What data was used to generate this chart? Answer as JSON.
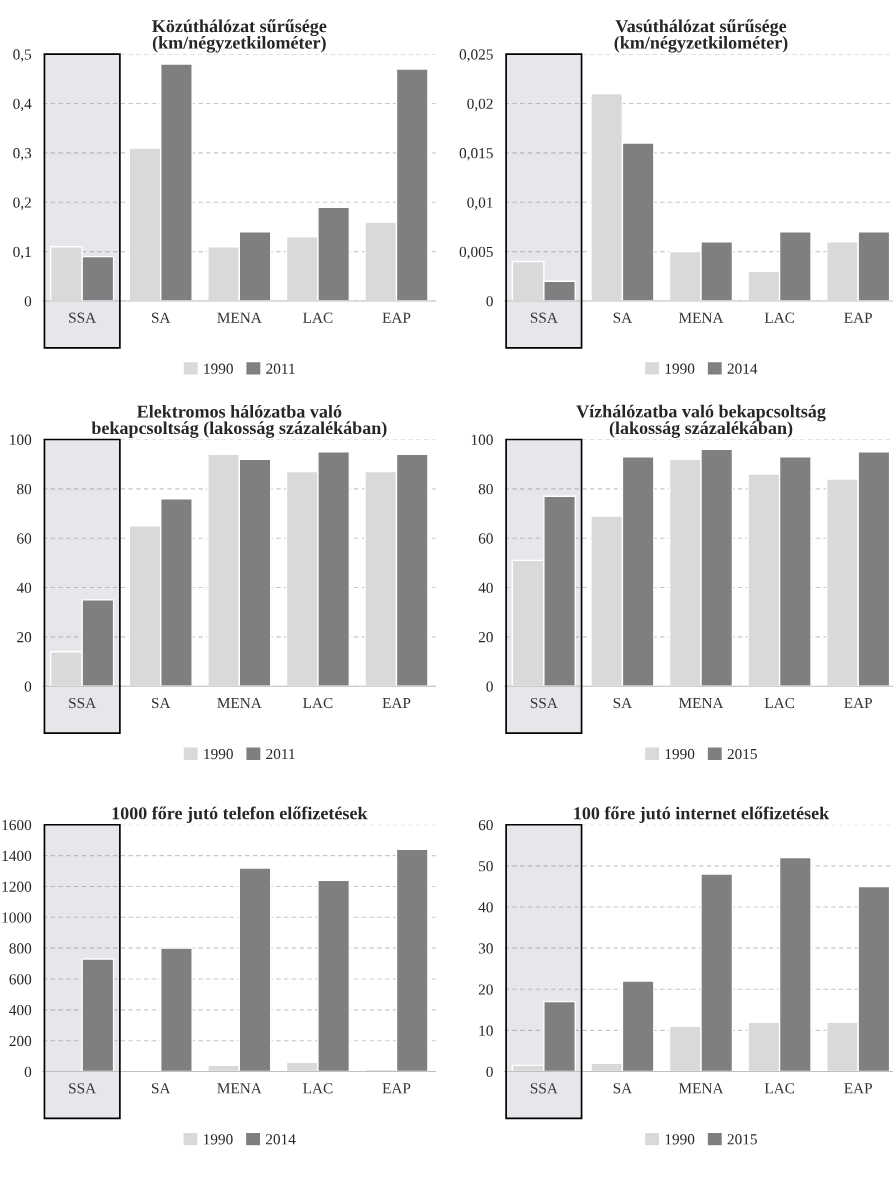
{
  "chart_data": [
    {
      "type": "bar",
      "title": "Közúthálózat sűrűsége\n(km/négyzetkilométer)",
      "categories": [
        "SSA",
        "SA",
        "MENA",
        "LAC",
        "EAP"
      ],
      "series": [
        {
          "name": "1990",
          "color": "#d9d9d9",
          "values": [
            0.11,
            0.31,
            0.11,
            0.13,
            0.16
          ]
        },
        {
          "name": "2011",
          "color": "#7f7f81",
          "values": [
            0.09,
            0.48,
            0.14,
            0.19,
            0.47
          ]
        }
      ],
      "ylim": [
        0,
        0.5
      ],
      "yticks": [
        0,
        {
          "value": 0.1,
          "label": "0,1"
        },
        {
          "value": 0.2,
          "label": "0,2"
        },
        {
          "value": 0.3,
          "label": "0,3"
        },
        {
          "value": 0.4,
          "label": "0,4"
        },
        {
          "value": 0.5,
          "label": "0,5"
        }
      ],
      "grid": "y",
      "legend": "bottom",
      "bands": [
        {
          "axis": "x",
          "from": "SSA",
          "to": "SSA",
          "color": "#5a6070"
        }
      ]
    },
    {
      "type": "bar",
      "title": "Vasúthálózat sűrűsége\n(km/négyzetkilométer)",
      "categories": [
        "SSA",
        "SA",
        "MENA",
        "LAC",
        "EAP"
      ],
      "series": [
        {
          "name": "1990",
          "color": "#d9d9d9",
          "values": [
            0.004,
            0.021,
            0.005,
            0.003,
            0.006
          ]
        },
        {
          "name": "2014",
          "color": "#7f7f81",
          "values": [
            0.002,
            0.016,
            0.006,
            0.007,
            0.007
          ]
        }
      ],
      "ylim": [
        0,
        0.025
      ],
      "yticks": [
        0,
        {
          "value": 0.005,
          "label": "0,005"
        },
        {
          "value": 0.01,
          "label": "0,01"
        },
        {
          "value": 0.015,
          "label": "0,015"
        },
        {
          "value": 0.02,
          "label": "0,02"
        },
        {
          "value": 0.025,
          "label": "0,025"
        }
      ],
      "grid": "y",
      "legend": "bottom",
      "bands": [
        {
          "axis": "x",
          "from": "SSA",
          "to": "SSA",
          "color": "#5a6070"
        }
      ]
    },
    {
      "type": "bar",
      "title": "Elektromos hálózatba való\nbekapcsoltság (lakosság százalékában)",
      "categories": [
        "SSA",
        "SA",
        "MENA",
        "LAC",
        "EAP"
      ],
      "series": [
        {
          "name": "1990",
          "color": "#d9d9d9",
          "values": [
            14,
            65,
            94,
            87,
            87
          ]
        },
        {
          "name": "2011",
          "color": "#7f7f81",
          "values": [
            35,
            76,
            92,
            95,
            94
          ]
        }
      ],
      "ylim": [
        0,
        100
      ],
      "yticks": [
        0,
        20,
        40,
        60,
        80,
        100
      ],
      "grid": "y",
      "legend": "bottom",
      "bands": [
        {
          "axis": "x",
          "from": "SSA",
          "to": "SSA",
          "color": "#5a6070"
        }
      ]
    },
    {
      "type": "bar",
      "title": "Vízhálózatba való bekapcsoltság\n(lakosság százalékában)",
      "categories": [
        "SSA",
        "SA",
        "MENA",
        "LAC",
        "EAP"
      ],
      "series": [
        {
          "name": "1990",
          "color": "#d9d9d9",
          "values": [
            51,
            69,
            92,
            86,
            84
          ]
        },
        {
          "name": "2015",
          "color": "#7f7f81",
          "values": [
            77,
            93,
            96,
            93,
            95
          ]
        }
      ],
      "ylim": [
        0,
        100
      ],
      "yticks": [
        0,
        20,
        40,
        60,
        80,
        100
      ],
      "grid": "y",
      "legend": "bottom",
      "bands": [
        {
          "axis": "x",
          "from": "SSA",
          "to": "SSA",
          "color": "#5a6070"
        }
      ]
    },
    {
      "type": "bar",
      "title": "1000 főre jutó telefon előfizetések",
      "categories": [
        "SSA",
        "SA",
        "MENA",
        "LAC",
        "EAP"
      ],
      "series": [
        {
          "name": "1990",
          "color": "#d9d9d9",
          "values": [
            null,
            null,
            40,
            60,
            15
          ]
        },
        {
          "name": "2014",
          "color": "#7f7f81",
          "values": [
            730,
            800,
            1320,
            1240,
            1440
          ]
        }
      ],
      "ylim": [
        0,
        1600
      ],
      "yticks": [
        0,
        200,
        400,
        600,
        800,
        1000,
        1200,
        1400,
        1600
      ],
      "grid": "y",
      "legend": "bottom",
      "bands": [
        {
          "axis": "x",
          "from": "SSA",
          "to": "SSA",
          "color": "#5a6070"
        }
      ]
    },
    {
      "type": "bar",
      "title": "100 főre jutó internet előfizetések",
      "categories": [
        "SSA",
        "SA",
        "MENA",
        "LAC",
        "EAP"
      ],
      "series": [
        {
          "name": "1990",
          "color": "#d9d9d9",
          "values": [
            1.5,
            2,
            11,
            12,
            12
          ]
        },
        {
          "name": "2015",
          "color": "#7f7f81",
          "values": [
            17,
            22,
            48,
            52,
            45
          ]
        }
      ],
      "ylim": [
        0,
        60
      ],
      "yticks": [
        0,
        10,
        20,
        30,
        40,
        50,
        60
      ],
      "grid": "y",
      "legend": "bottom",
      "bands": [
        {
          "axis": "x",
          "from": "SSA",
          "to": "SSA",
          "color": "#5a6070"
        }
      ]
    }
  ]
}
